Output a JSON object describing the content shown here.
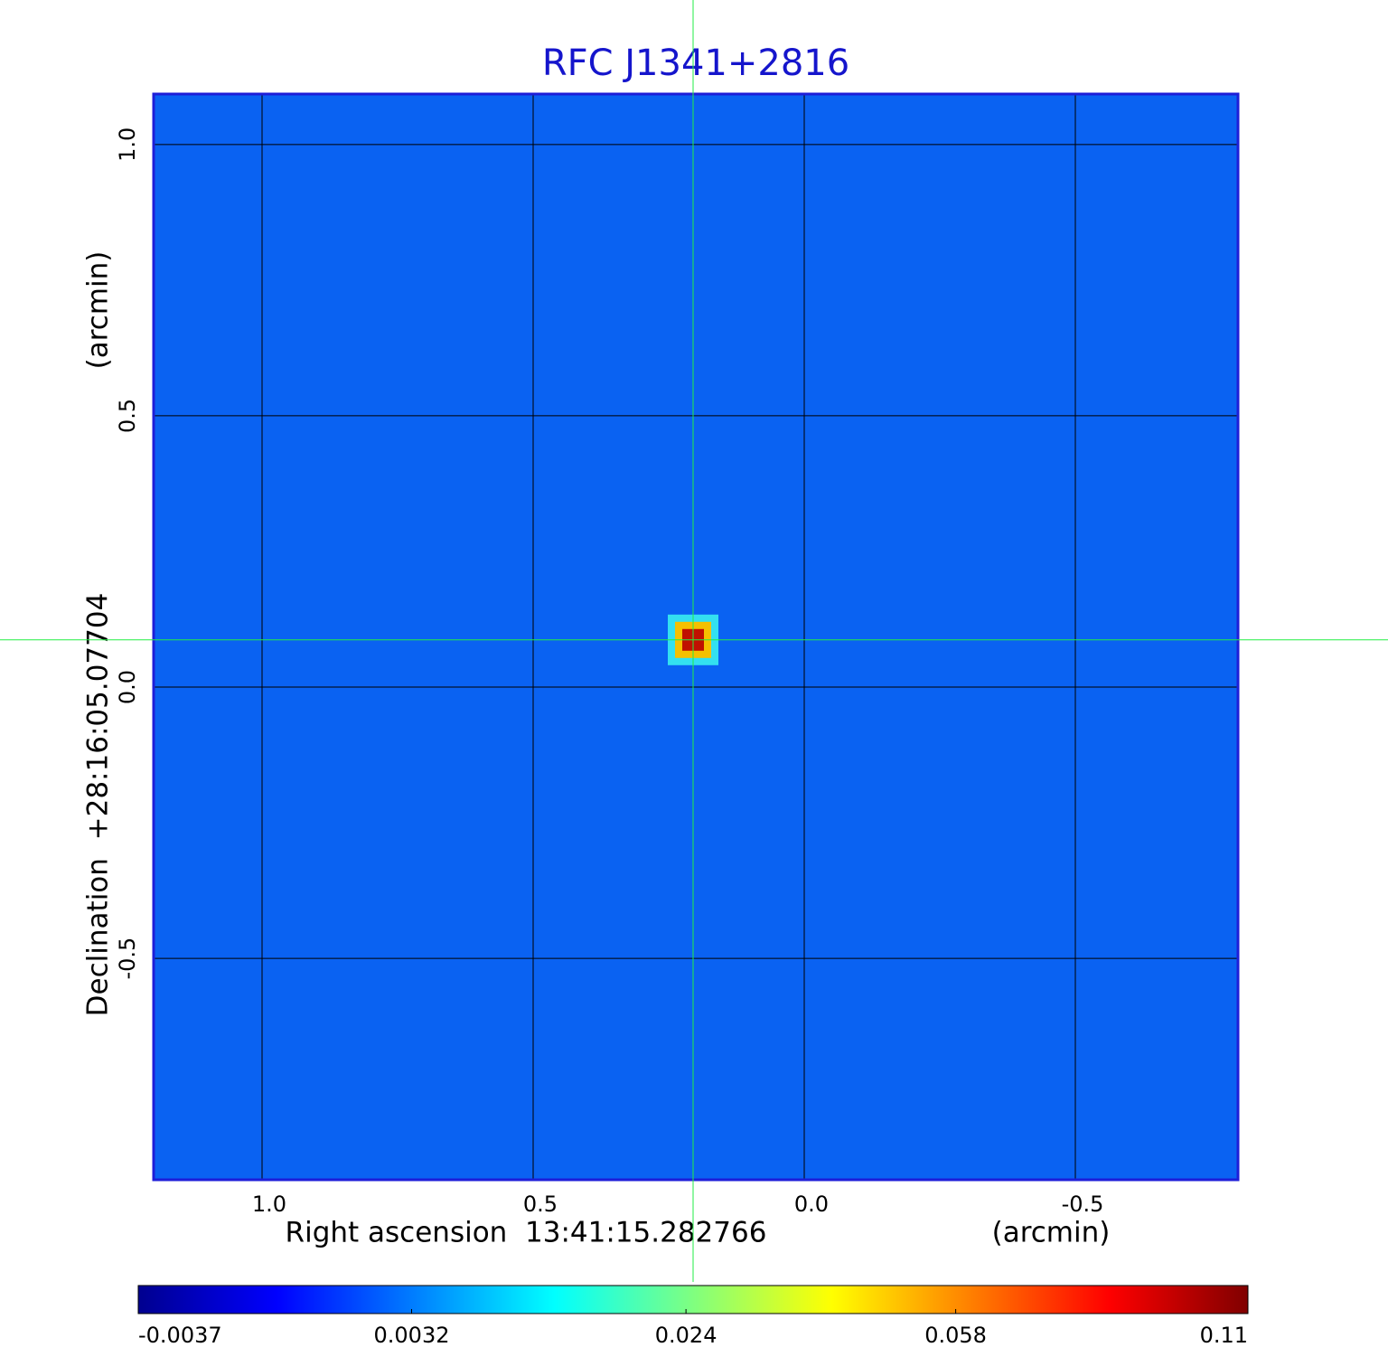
{
  "chart_data": {
    "type": "image",
    "title": "RFC J1341+2816",
    "x_label": "Right ascension  13:41:15.282766",
    "x_unit": "(arcmin)",
    "y_label": "Declination  +28:16:05.07704",
    "y_unit": "(arcmin)",
    "xlim": [
      1.2,
      -0.8
    ],
    "ylim": [
      -0.908,
      1.093
    ],
    "xticks": [
      {
        "value": 1,
        "label": "1.0"
      },
      0.5,
      {
        "value": 0,
        "label": "0.0"
      },
      -0.5
    ],
    "yticks": [
      {
        "value": 1,
        "label": "1.0"
      },
      0.5,
      {
        "value": 0,
        "label": "0.0"
      },
      -0.5
    ],
    "grid": true,
    "source": {
      "x": 0.205,
      "y": 0.087,
      "peak": 0.11
    },
    "colorbar": {
      "clim": [
        -0.0037,
        0.11
      ],
      "scale": "sqrt",
      "ticks": [
        -0.0037,
        0.0032,
        0.024,
        0.058,
        0.11
      ]
    }
  }
}
